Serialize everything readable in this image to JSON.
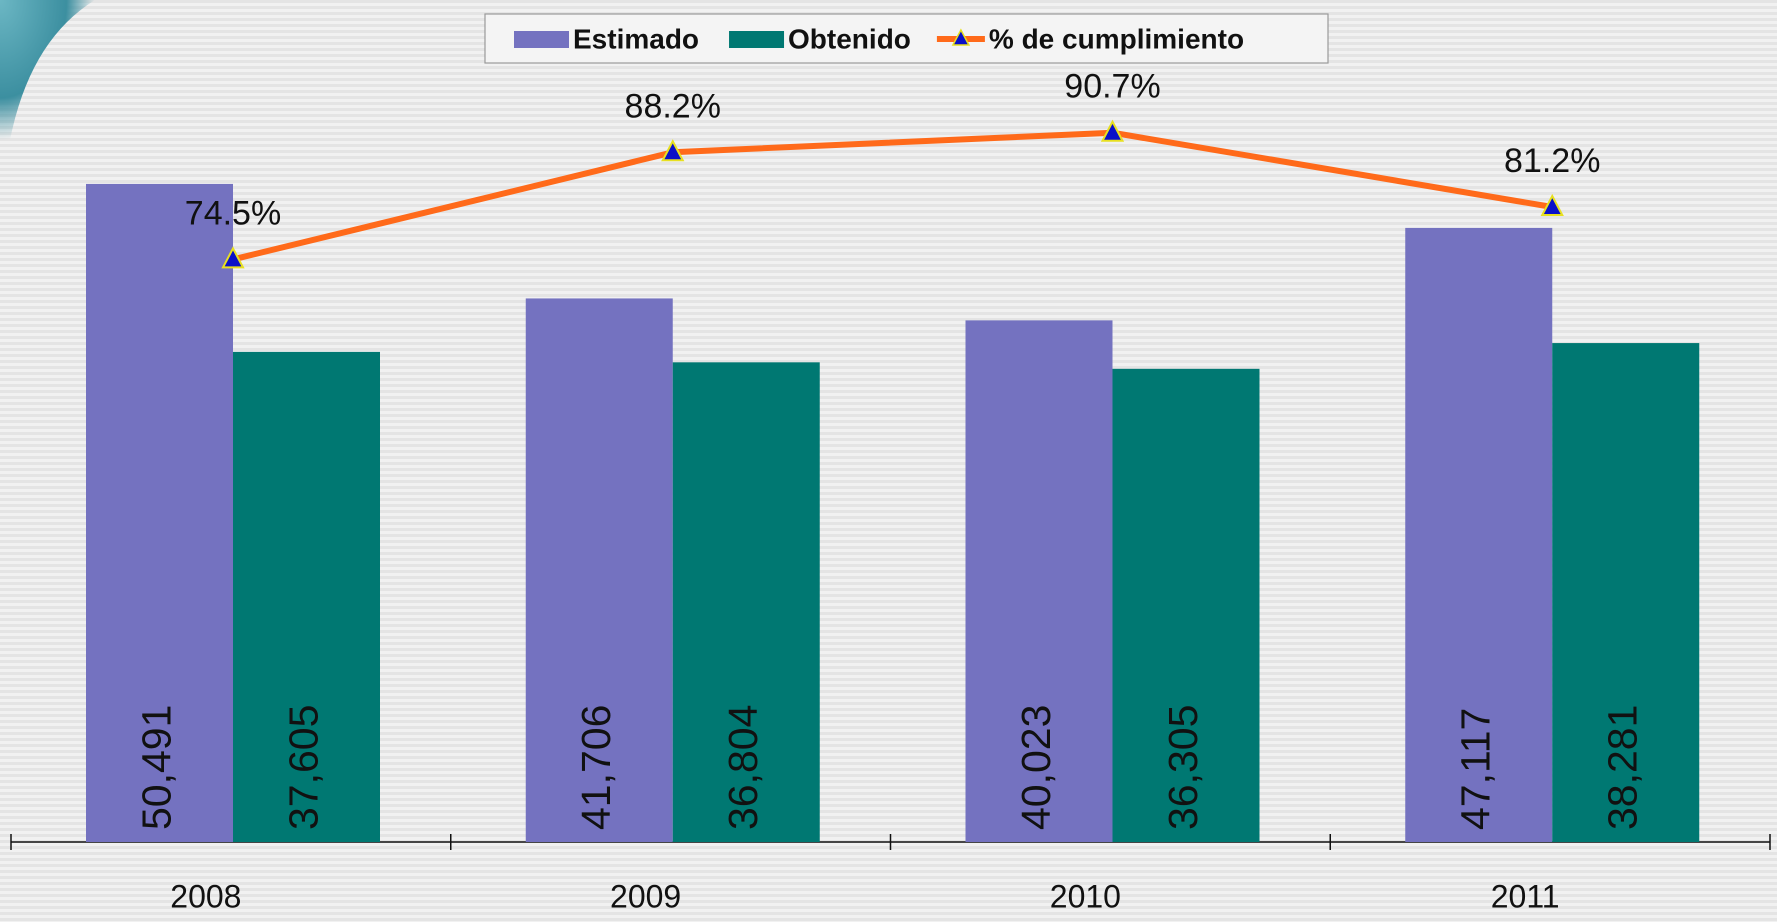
{
  "chart_data": {
    "type": "bar",
    "categories": [
      "2008",
      "2009",
      "2010",
      "2011"
    ],
    "series": [
      {
        "name": "Estimado",
        "color": "#7472c0",
        "values": [
          50491,
          41706,
          40023,
          47117
        ],
        "value_labels": [
          "50,491",
          "41,706",
          "40,023",
          "47,117"
        ]
      },
      {
        "name": "Obtenido",
        "color": "#007872",
        "values": [
          37605,
          36804,
          36305,
          38281
        ],
        "value_labels": [
          "37,605",
          "36,804",
          "36,305",
          "38,281"
        ]
      },
      {
        "name": "% de cumplimiento",
        "type": "line",
        "axis": "y2",
        "color": "#ff6a1a",
        "marker_color": "#0a10c8",
        "values": [
          74.5,
          88.2,
          90.7,
          81.2
        ],
        "value_labels": [
          "74.5%",
          "88.2%",
          "90.7%",
          "81.2%"
        ]
      }
    ],
    "ylim": [
      0,
      60000
    ],
    "y2lim": [
      0,
      100
    ],
    "legend": "top"
  }
}
